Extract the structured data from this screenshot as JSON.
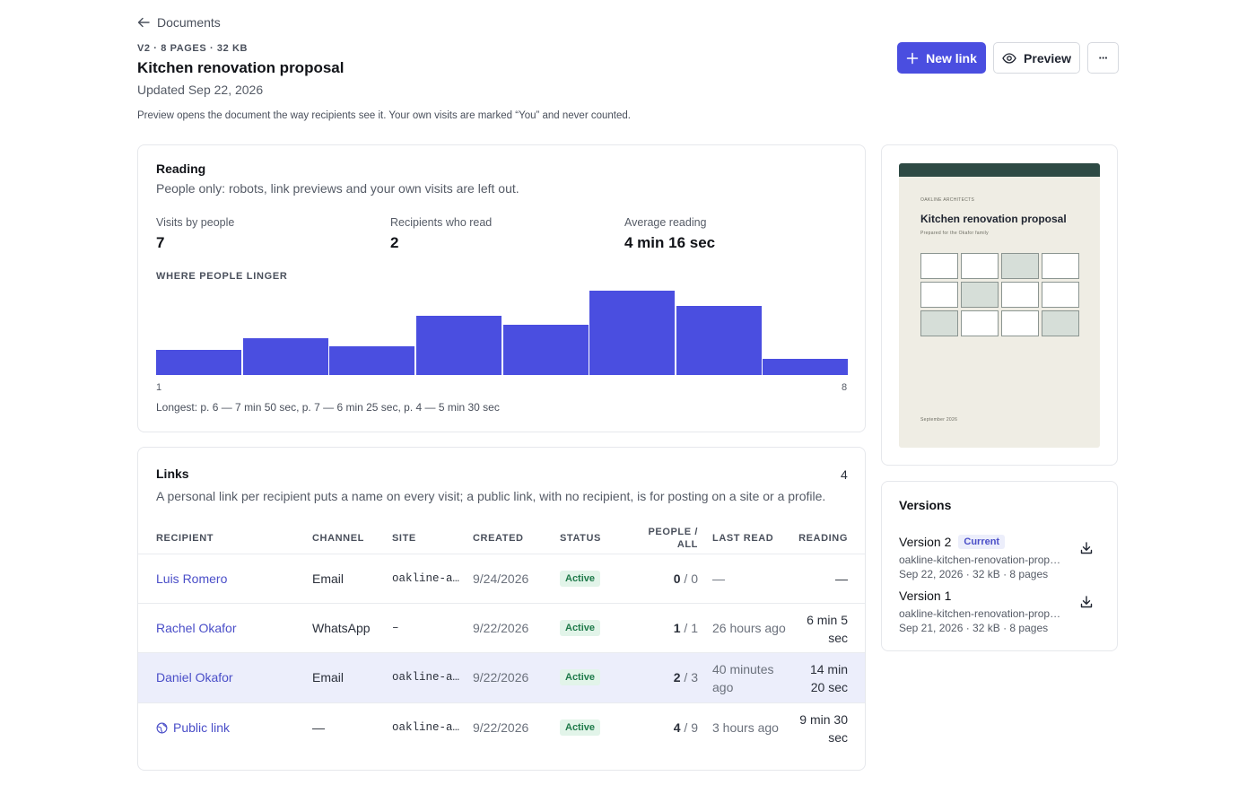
{
  "header": {
    "back_label": "Documents",
    "meta": "V2 · 8 PAGES · 32 KB",
    "title": "Kitchen renovation proposal",
    "updated": "Updated Sep 22, 2026",
    "note": "Preview opens the document the way recipients see it. Your own visits are marked “You” and never counted.",
    "new_link_label": "New link",
    "preview_label": "Preview",
    "more_label": "···"
  },
  "reading": {
    "title": "Reading",
    "subtitle": "People only: robots, link previews and your own visits are left out.",
    "stats": [
      {
        "label": "Visits by people",
        "value": "7"
      },
      {
        "label": "Recipients who read",
        "value": "2"
      },
      {
        "label": "Average reading",
        "value": "4 min 16 sec"
      }
    ],
    "linger_label": "WHERE PEOPLE LINGER",
    "axis_start": "1",
    "axis_end": "8",
    "longest": "Longest: p. 6 — 7 min 50 sec, p. 7 — 6 min 25 sec, p. 4 — 5 min 30 sec"
  },
  "chart_data": {
    "type": "bar",
    "categories": [
      "1",
      "2",
      "3",
      "4",
      "5",
      "6",
      "7",
      "8"
    ],
    "values": [
      2.3,
      3.4,
      2.7,
      5.5,
      4.7,
      7.83,
      6.42,
      1.5
    ],
    "title": "WHERE PEOPLE LINGER",
    "xlabel": "",
    "ylabel": "",
    "ylim": [
      0,
      7.83
    ],
    "colors": {
      "bar": "#4a4ee0"
    }
  },
  "links": {
    "title": "Links",
    "count": "4",
    "subtitle": "A personal link per recipient puts a name on every visit; a public link, with no recipient, is for posting on a site or a profile.",
    "columns": {
      "recipient": "RECIPIENT",
      "channel": "CHANNEL",
      "site": "SITE",
      "created": "CREATED",
      "status": "STATUS",
      "people_line1": "PEOPLE /",
      "people_line2": "ALL",
      "last_read": "LAST READ",
      "reading": "READING"
    },
    "rows": [
      {
        "recipient": "Luis Romero",
        "channel": "Email",
        "site": "oakline-a…",
        "created": "9/24/2026",
        "status": "Active",
        "people": "0",
        "all": "0",
        "last_read_1": "—",
        "last_read_2": "",
        "reading_1": "—",
        "reading_2": ""
      },
      {
        "recipient": "Rachel Okafor",
        "channel": "WhatsApp",
        "site": "–",
        "created": "9/22/2026",
        "status": "Active",
        "people": "1",
        "all": "1",
        "last_read_1": "26 hours ago",
        "last_read_2": "",
        "reading_1": "6 min 5",
        "reading_2": "sec"
      },
      {
        "recipient": "Daniel Okafor",
        "channel": "Email",
        "site": "oakline-a…",
        "created": "9/22/2026",
        "status": "Active",
        "people": "2",
        "all": "3",
        "last_read_1": "40 minutes",
        "last_read_2": "ago",
        "reading_1": "14 min",
        "reading_2": "20 sec"
      },
      {
        "recipient": "Public link",
        "channel": "—",
        "site": "oakline-a…",
        "created": "9/22/2026",
        "status": "Active",
        "people": "4",
        "all": "9",
        "last_read_1": "3 hours ago",
        "last_read_2": "",
        "reading_1": "9 min 30",
        "reading_2": "sec"
      }
    ]
  },
  "thumbnail": {
    "org": "OAKLINE ARCHITECTS",
    "title": "Kitchen renovation proposal",
    "subtitle": "Prepared for the Okafor family",
    "footer": "September 2026"
  },
  "versions": {
    "title": "Versions",
    "items": [
      {
        "name": "Version 2",
        "badge": "Current",
        "file": "oakline-kitchen-renovation-proposal.pdf",
        "meta": "Sep 22, 2026 · 32 kB · 8 pages"
      },
      {
        "name": "Version 1",
        "badge": "",
        "file": "oakline-kitchen-renovation-proposal.pdf",
        "meta": "Sep 21, 2026 · 32 kB · 8 pages"
      }
    ]
  }
}
